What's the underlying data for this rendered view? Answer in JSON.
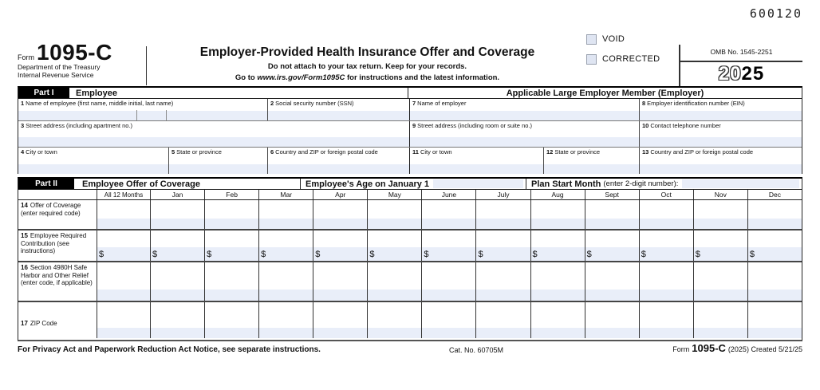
{
  "page": {
    "doc_code": "600120"
  },
  "header": {
    "form_word": "Form",
    "form_number": "1095-C",
    "dept_line1": "Department of the Treasury",
    "dept_line2": "Internal Revenue Service",
    "title": "Employer-Provided Health Insurance Offer and Coverage",
    "subtitle1": "Do not attach to your tax return. Keep for your records.",
    "goto_prefix": "Go to ",
    "goto_url": "www.irs.gov/Form1095C",
    "goto_suffix": " for instructions and the latest information.",
    "void_label": "VOID",
    "corrected_label": "CORRECTED",
    "omb_number": "OMB No. 1545-2251",
    "year_outline": "20",
    "year_bold": "25",
    "accent_input_color": "#e9eef9"
  },
  "part1": {
    "tag": "Part I",
    "left_title": "Employee",
    "right_title": "Applicable Large Employer Member (Employer)",
    "fields": [
      {
        "num": "1",
        "label": "Name of employee (first name, middle initial, last name)"
      },
      {
        "num": "2",
        "label": "Social security number (SSN)"
      },
      {
        "num": "3",
        "label": "Street address (including apartment no.)"
      },
      {
        "num": "4",
        "label": "City or town"
      },
      {
        "num": "5",
        "label": "State or province"
      },
      {
        "num": "6",
        "label": "Country and ZIP or foreign postal code"
      },
      {
        "num": "7",
        "label": "Name of employer"
      },
      {
        "num": "8",
        "label": "Employer identification number (EIN)"
      },
      {
        "num": "9",
        "label": "Street address (including room or suite no.)"
      },
      {
        "num": "10",
        "label": "Contact telephone number"
      },
      {
        "num": "11",
        "label": "City or town"
      },
      {
        "num": "12",
        "label": "State or province"
      },
      {
        "num": "13",
        "label": "Country and ZIP or foreign postal code"
      }
    ]
  },
  "part2": {
    "tag": "Part II",
    "title": "Employee Offer of Coverage",
    "age_label": "Employee's Age on January 1",
    "plan_start_bold": "Plan Start Month",
    "plan_start_rest": "(enter 2-digit number):",
    "columns": [
      "All 12 Months",
      "Jan",
      "Feb",
      "Mar",
      "Apr",
      "May",
      "June",
      "July",
      "Aug",
      "Sept",
      "Oct",
      "Nov",
      "Dec"
    ],
    "rows": [
      {
        "num": "14",
        "label": "Offer of Coverage (enter required code)",
        "dollar": ""
      },
      {
        "num": "15",
        "label": "Employee Required Contribution (see instructions)",
        "dollar": "$"
      },
      {
        "num": "16",
        "label": "Section 4980H Safe Harbor and Other Relief (enter code, if applicable)",
        "dollar": ""
      },
      {
        "num": "17",
        "label": "ZIP Code",
        "dollar": ""
      }
    ]
  },
  "footer": {
    "privacy_notice": "For Privacy Act and Paperwork Reduction Act Notice, see separate instructions.",
    "cat_no": "Cat. No. 60705M",
    "form_word": "Form",
    "form_number": "1095-C",
    "form_suffix": "(2025) Created 5/21/25"
  }
}
